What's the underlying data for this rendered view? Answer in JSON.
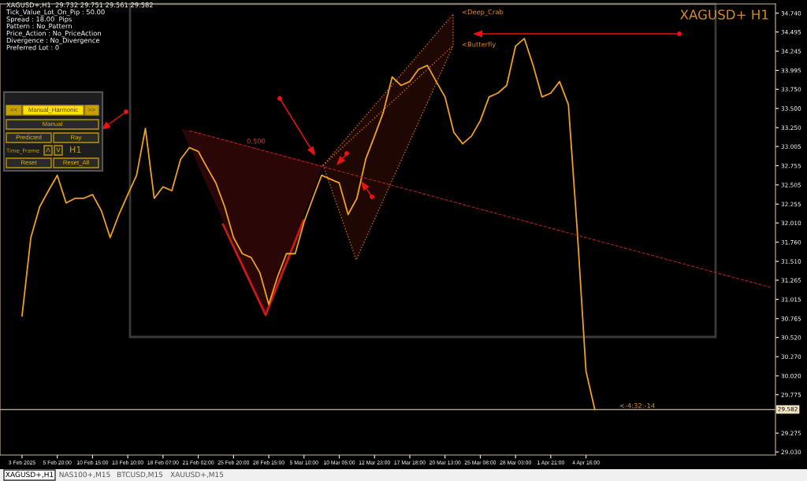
{
  "chart_data": {
    "type": "line",
    "title": "XAGUSD+ H1",
    "categories": [
      "3 Feb 2025",
      null,
      null,
      null,
      "5 Feb 20:00",
      null,
      null,
      null,
      "10 Feb 15:00",
      null,
      null,
      null,
      "13 Feb 10:00",
      null,
      null,
      null,
      "18 Feb 07:00",
      null,
      null,
      null,
      "21 Feb 02:00",
      null,
      null,
      null,
      "25 Feb 20:00",
      null,
      null,
      null,
      "28 Feb 15:00",
      null,
      null,
      null,
      "5 Mar 10:00",
      null,
      null,
      null,
      "10 Mar 05:00",
      null,
      null,
      null,
      "12 Mar 23:00",
      null,
      null,
      null,
      "17 Mar 18:00",
      null,
      null,
      null,
      "20 Mar 13:00",
      null,
      null,
      null,
      "25 Mar 08:00",
      null,
      null,
      null,
      "28 Mar 03:00",
      null,
      null,
      null,
      "1 Apr 21:00",
      null,
      null,
      null,
      "4 Apr 16:00",
      null,
      null,
      null,
      null,
      null,
      null,
      null,
      null,
      null,
      null,
      null,
      null,
      null,
      null,
      null,
      null,
      null,
      null,
      null,
      null,
      null
    ],
    "series": [
      {
        "color": "#f0a020",
        "values": [
          30.8,
          31.82,
          32.22,
          32.43,
          32.63,
          32.27,
          32.33,
          32.33,
          32.38,
          32.17,
          31.82,
          32.12,
          32.38,
          32.63,
          33.24,
          32.33,
          32.48,
          32.43,
          32.84,
          32.99,
          32.94,
          32.73,
          32.53,
          32.22,
          31.82,
          31.61,
          31.56,
          31.36,
          30.95,
          31.31,
          31.61,
          31.61,
          32.02,
          32.33,
          32.63,
          32.58,
          32.53,
          32.12,
          32.33,
          32.84,
          33.14,
          33.45,
          33.91,
          33.8,
          33.85,
          34.01,
          34.06,
          33.85,
          33.65,
          33.19,
          33.04,
          33.14,
          33.34,
          33.65,
          33.7,
          33.8,
          34.31,
          34.41,
          34.06,
          33.65,
          33.7,
          33.85,
          33.55,
          31.92,
          30.08,
          29.58,
          null,
          null,
          null,
          null,
          null,
          null,
          null,
          null,
          null,
          null,
          null,
          null,
          null,
          null,
          null,
          null,
          null,
          null,
          null,
          null
        ]
      },
      {
        "color": "#b02020",
        "line_style": "dashed",
        "values": [
          null,
          null,
          null,
          null,
          null,
          null,
          null,
          null,
          null,
          null,
          null,
          null,
          null,
          null,
          null,
          null,
          null,
          null,
          null,
          33.21,
          null,
          null,
          null,
          null,
          null,
          null,
          null,
          null,
          null,
          null,
          null,
          null,
          null,
          null,
          null,
          null,
          null,
          null,
          null,
          null,
          null,
          null,
          null,
          null,
          null,
          null,
          null,
          null,
          null,
          null,
          null,
          null,
          null,
          null,
          null,
          null,
          null,
          null,
          null,
          null,
          null,
          null,
          null,
          null,
          null,
          null,
          null,
          null,
          null,
          null,
          null,
          null,
          null,
          null,
          null,
          null,
          null,
          null,
          null,
          null,
          null,
          null,
          null,
          null,
          null,
          31.17
        ]
      }
    ],
    "ylim": [
      28.99,
      34.86
    ],
    "yticks": [
      {
        "value": 34.74,
        "label": "34.740"
      },
      34.495,
      34.245,
      33.995,
      {
        "value": 33.75,
        "label": "33.750"
      },
      {
        "value": 33.5,
        "label": "33.500"
      },
      {
        "value": 33.25,
        "label": "33.250"
      },
      33.005,
      32.755,
      32.505,
      32.255,
      {
        "value": 32.01,
        "label": "32.010"
      },
      {
        "value": 31.76,
        "label": "31.760"
      },
      {
        "value": 31.51,
        "label": "31.510"
      },
      31.265,
      31.015,
      30.765,
      {
        "value": 30.52,
        "label": "30.520"
      },
      {
        "value": 30.27,
        "label": "30.270"
      },
      {
        "value": 30.02,
        "label": "30.020"
      },
      29.775,
      29.275,
      {
        "value": 29.03,
        "label": "29.030"
      }
    ],
    "ref_lines": [
      {
        "axis": "y",
        "value": 29.582,
        "label": "29.582",
        "color": "#f5e6c8"
      }
    ],
    "grid": false,
    "legend": false,
    "annotations": [
      "XAGUSD+,H1  29.732 29.751 29.561 29.582",
      "Tick_Value_Lot_On_Pip : 50.00",
      "Spread : 18.00  Pips",
      "Pattern : No_Pattern",
      "Price_Action : No_PriceAction",
      "Divergence : No_Divergence",
      "Preferred Lot : 0",
      "<Deep_Crab",
      "<Butterfly",
      "0.500",
      "<-4:32:-14",
      "<<",
      "Manual_Harmonic",
      ">>",
      "Manual",
      "Predicted",
      "Ray",
      "Time_Frame",
      "Λ",
      "V",
      "H1",
      "Reset",
      "Reset_All",
      "XAGUSD+,H1",
      "NAS100+,M15",
      "BTCUSD,M15",
      "XAUUSD+,M15"
    ]
  }
}
